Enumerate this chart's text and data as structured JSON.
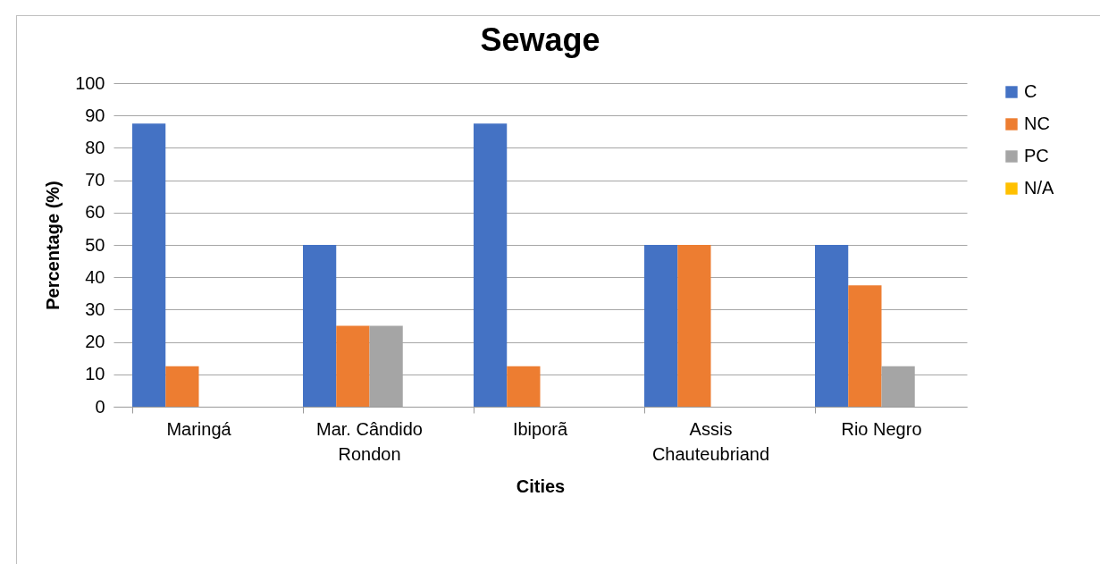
{
  "chart_data": {
    "type": "bar",
    "title": "Sewage",
    "xlabel": "Cities",
    "ylabel": "Percentage (%)",
    "categories": [
      "Maringá",
      "Mar. Cândido Rondon",
      "Ibiporã",
      "Assis Chauteubriand",
      "Rio Negro"
    ],
    "series": [
      {
        "name": "C",
        "color": "#4472c4",
        "values": [
          87.5,
          50,
          87.5,
          50,
          50
        ]
      },
      {
        "name": "NC",
        "color": "#ed7d31",
        "values": [
          12.5,
          25,
          12.5,
          50,
          37.5
        ]
      },
      {
        "name": "PC",
        "color": "#a5a5a5",
        "values": [
          0,
          25,
          0,
          0,
          12.5
        ]
      },
      {
        "name": "N/A",
        "color": "#ffc000",
        "values": [
          0,
          0,
          0,
          0,
          0
        ]
      }
    ],
    "ylim": [
      0,
      100
    ],
    "yticks": [
      0,
      10,
      20,
      30,
      40,
      50,
      60,
      70,
      80,
      90,
      100
    ],
    "grid": "y",
    "legend": "right"
  }
}
